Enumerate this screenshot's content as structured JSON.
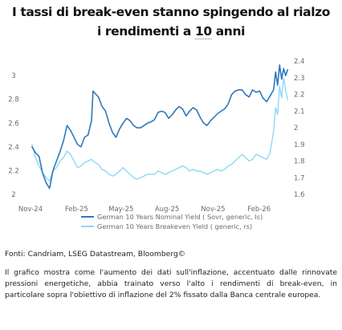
{
  "title": {
    "line1": "I tassi di break-even stanno spingendo al rialzo",
    "line2_pre": "i rendimenti a ",
    "line2_num": "10",
    "line2_post": " anni"
  },
  "chart_data": {
    "type": "line",
    "x_tick_labels": [
      "Nov-24",
      "Feb-25",
      "May-25",
      "Aug-25",
      "Nov-25",
      "Feb-26"
    ],
    "x_tick_dates": [
      "2024-11-01",
      "2025-02-01",
      "2025-05-01",
      "2025-08-01",
      "2025-11-01",
      "2026-02-01"
    ],
    "xlim": [
      "2024-11-01",
      "2026-04-05"
    ],
    "left_axis": {
      "ylim": [
        2.0,
        3.15
      ],
      "ticks": [
        2,
        2.2,
        2.4,
        2.6,
        2.8,
        3
      ]
    },
    "right_axis": {
      "ylim": [
        1.6,
        2.42
      ],
      "ticks": [
        1.6,
        1.7,
        1.8,
        1.9,
        2,
        2.1,
        2.2,
        2.3,
        2.4
      ]
    },
    "grid": false,
    "legend_position": "bottom-center",
    "series": [
      {
        "name": "German 10 Years Nominal Yield ( Sovr, generic, ls)",
        "axis": "left",
        "color": "#2f78be",
        "x": [
          "2024-11-04",
          "2024-11-11",
          "2024-11-18",
          "2024-11-25",
          "2024-12-02",
          "2024-12-09",
          "2024-12-16",
          "2024-12-23",
          "2024-12-30",
          "2025-01-06",
          "2025-01-13",
          "2025-01-20",
          "2025-01-27",
          "2025-02-03",
          "2025-02-10",
          "2025-02-17",
          "2025-02-24",
          "2025-03-03",
          "2025-03-06",
          "2025-03-10",
          "2025-03-17",
          "2025-03-24",
          "2025-03-31",
          "2025-04-07",
          "2025-04-14",
          "2025-04-21",
          "2025-04-28",
          "2025-05-05",
          "2025-05-12",
          "2025-05-19",
          "2025-05-26",
          "2025-06-02",
          "2025-06-09",
          "2025-06-16",
          "2025-06-23",
          "2025-06-30",
          "2025-07-07",
          "2025-07-14",
          "2025-07-21",
          "2025-07-28",
          "2025-08-04",
          "2025-08-11",
          "2025-08-18",
          "2025-08-25",
          "2025-09-01",
          "2025-09-08",
          "2025-09-15",
          "2025-09-22",
          "2025-09-29",
          "2025-10-06",
          "2025-10-13",
          "2025-10-20",
          "2025-10-27",
          "2025-11-03",
          "2025-11-10",
          "2025-11-17",
          "2025-11-24",
          "2025-12-01",
          "2025-12-08",
          "2025-12-15",
          "2025-12-22",
          "2025-12-29",
          "2026-01-05",
          "2026-01-12",
          "2026-01-19",
          "2026-01-26",
          "2026-02-02",
          "2026-02-09",
          "2026-02-16",
          "2026-02-23",
          "2026-03-02",
          "2026-03-06",
          "2026-03-10",
          "2026-03-14",
          "2026-03-18",
          "2026-03-22",
          "2026-03-26",
          "2026-03-30"
        ],
        "values": [
          2.4,
          2.35,
          2.32,
          2.18,
          2.1,
          2.05,
          2.2,
          2.28,
          2.36,
          2.45,
          2.58,
          2.54,
          2.48,
          2.42,
          2.4,
          2.48,
          2.5,
          2.62,
          2.87,
          2.85,
          2.82,
          2.74,
          2.7,
          2.6,
          2.52,
          2.48,
          2.55,
          2.6,
          2.64,
          2.62,
          2.58,
          2.56,
          2.56,
          2.58,
          2.6,
          2.61,
          2.63,
          2.69,
          2.7,
          2.69,
          2.64,
          2.67,
          2.71,
          2.74,
          2.72,
          2.66,
          2.7,
          2.73,
          2.71,
          2.65,
          2.6,
          2.58,
          2.62,
          2.65,
          2.68,
          2.7,
          2.72,
          2.76,
          2.84,
          2.87,
          2.88,
          2.88,
          2.84,
          2.82,
          2.88,
          2.86,
          2.87,
          2.81,
          2.78,
          2.83,
          2.88,
          3.03,
          2.92,
          3.09,
          2.97,
          3.06,
          3.0,
          3.05
        ]
      },
      {
        "name": "German 10 Years Breakeven Yield ( generic, rs)",
        "axis": "right",
        "color": "#8ed8f8",
        "x": [
          "2024-11-04",
          "2024-11-11",
          "2024-11-18",
          "2024-11-25",
          "2024-12-02",
          "2024-12-09",
          "2024-12-16",
          "2024-12-23",
          "2024-12-30",
          "2025-01-06",
          "2025-01-13",
          "2025-01-20",
          "2025-01-27",
          "2025-02-03",
          "2025-02-10",
          "2025-02-17",
          "2025-02-24",
          "2025-03-03",
          "2025-03-10",
          "2025-03-17",
          "2025-03-24",
          "2025-03-31",
          "2025-04-07",
          "2025-04-14",
          "2025-04-21",
          "2025-04-28",
          "2025-05-05",
          "2025-05-12",
          "2025-05-19",
          "2025-05-26",
          "2025-06-02",
          "2025-06-09",
          "2025-06-16",
          "2025-06-23",
          "2025-06-30",
          "2025-07-07",
          "2025-07-14",
          "2025-07-21",
          "2025-07-28",
          "2025-08-04",
          "2025-08-11",
          "2025-08-18",
          "2025-08-25",
          "2025-09-01",
          "2025-09-08",
          "2025-09-15",
          "2025-09-22",
          "2025-09-29",
          "2025-10-06",
          "2025-10-13",
          "2025-10-20",
          "2025-10-27",
          "2025-11-03",
          "2025-11-10",
          "2025-11-17",
          "2025-11-24",
          "2025-12-01",
          "2025-12-08",
          "2025-12-15",
          "2025-12-22",
          "2025-12-29",
          "2026-01-05",
          "2026-01-12",
          "2026-01-19",
          "2026-01-26",
          "2026-02-02",
          "2026-02-09",
          "2026-02-16",
          "2026-02-23",
          "2026-03-02",
          "2026-03-06",
          "2026-03-10",
          "2026-03-14",
          "2026-03-18",
          "2026-03-22",
          "2026-03-26",
          "2026-03-30"
        ],
        "values": [
          1.9,
          1.82,
          1.77,
          1.73,
          1.7,
          1.68,
          1.74,
          1.76,
          1.8,
          1.82,
          1.86,
          1.84,
          1.8,
          1.76,
          1.77,
          1.79,
          1.8,
          1.81,
          1.79,
          1.78,
          1.75,
          1.74,
          1.72,
          1.71,
          1.72,
          1.74,
          1.76,
          1.74,
          1.72,
          1.7,
          1.69,
          1.7,
          1.71,
          1.72,
          1.72,
          1.72,
          1.74,
          1.73,
          1.72,
          1.73,
          1.74,
          1.75,
          1.76,
          1.77,
          1.76,
          1.74,
          1.75,
          1.74,
          1.74,
          1.73,
          1.72,
          1.73,
          1.74,
          1.75,
          1.74,
          1.75,
          1.77,
          1.78,
          1.8,
          1.82,
          1.84,
          1.82,
          1.8,
          1.81,
          1.84,
          1.83,
          1.82,
          1.81,
          1.85,
          1.98,
          2.12,
          2.08,
          2.25,
          2.18,
          2.3,
          2.22,
          2.17
        ]
      }
    ]
  },
  "source": "Fonti: Candriam, LSEG Datastream, Bloomberg©",
  "note": "Il grafico mostra come l'aumento dei dati sull'inflazione, accentuato dalle rinnovate pressioni energetiche, abbia trainato verso l'alto i rendimenti di break-even, in particolare sopra l'obiettivo di inflazione del 2% fissato dalla Banca centrale europea."
}
